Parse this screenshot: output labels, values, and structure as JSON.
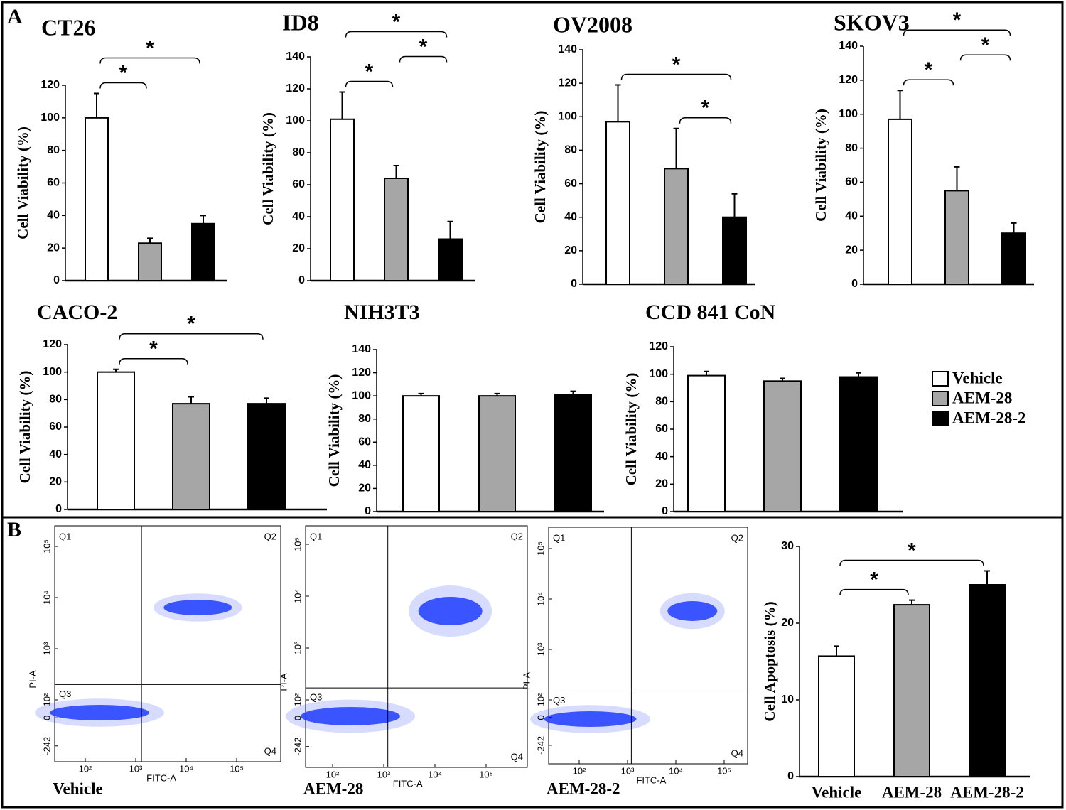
{
  "panel_labels": [
    "A",
    "B"
  ],
  "legend": [
    {
      "name": "Vehicle",
      "color": "#ffffff"
    },
    {
      "name": "AEM-28",
      "color": "#a6a6a6"
    },
    {
      "name": "AEM-28-2",
      "color": "#000000"
    }
  ],
  "chart_data": [
    {
      "type": "bar",
      "title": "CT26",
      "ylabel": "Cell Viability (%)",
      "values": [
        100,
        23,
        35
      ],
      "errors": [
        15,
        3,
        5
      ],
      "ylim": [
        0,
        120
      ],
      "yticks": [
        0,
        20,
        40,
        60,
        80,
        100,
        120
      ],
      "significance": [
        {
          "from": 0,
          "to": 1,
          "label": "*"
        },
        {
          "from": 0,
          "to": 2,
          "label": "*"
        }
      ]
    },
    {
      "type": "bar",
      "title": "ID8",
      "ylabel": "Cell Viability (%)",
      "values": [
        101,
        64,
        26
      ],
      "errors": [
        17,
        8,
        11
      ],
      "ylim": [
        0,
        140
      ],
      "yticks": [
        0,
        20,
        40,
        60,
        80,
        100,
        120,
        140
      ],
      "significance": [
        {
          "from": 0,
          "to": 1,
          "label": "*"
        },
        {
          "from": 1,
          "to": 2,
          "label": "*"
        },
        {
          "from": 0,
          "to": 2,
          "label": "*"
        }
      ]
    },
    {
      "type": "bar",
      "title": "OV2008",
      "ylabel": "Cell Viability (%)",
      "values": [
        97,
        69,
        40
      ],
      "errors": [
        22,
        24,
        14
      ],
      "ylim": [
        0,
        140
      ],
      "yticks": [
        0,
        20,
        40,
        60,
        80,
        100,
        120,
        140
      ],
      "significance": [
        {
          "from": 1,
          "to": 2,
          "label": "*"
        },
        {
          "from": 0,
          "to": 2,
          "label": "*"
        }
      ]
    },
    {
      "type": "bar",
      "title": "SKOV3",
      "ylabel": "Cell Viability (%)",
      "values": [
        97,
        55,
        30
      ],
      "errors": [
        17,
        14,
        6
      ],
      "ylim": [
        0,
        140
      ],
      "yticks": [
        0,
        20,
        40,
        60,
        80,
        100,
        120,
        140
      ],
      "significance": [
        {
          "from": 0,
          "to": 1,
          "label": "*"
        },
        {
          "from": 1,
          "to": 2,
          "label": "*"
        },
        {
          "from": 0,
          "to": 2,
          "label": "*"
        }
      ]
    },
    {
      "type": "bar",
      "title": "CACO-2",
      "ylabel": "Cell Viability (%)",
      "values": [
        100,
        77,
        77
      ],
      "errors": [
        2,
        5,
        4
      ],
      "ylim": [
        0,
        120
      ],
      "yticks": [
        0,
        20,
        40,
        60,
        80,
        100,
        120
      ],
      "significance": [
        {
          "from": 0,
          "to": 1,
          "label": "*"
        },
        {
          "from": 0,
          "to": 2,
          "label": "*"
        }
      ]
    },
    {
      "type": "bar",
      "title": "NIH3T3",
      "ylabel": "Cell Viability (%)",
      "values": [
        100,
        100,
        101
      ],
      "errors": [
        2,
        2,
        3
      ],
      "ylim": [
        0,
        140
      ],
      "yticks": [
        0,
        20,
        40,
        60,
        80,
        100,
        120,
        140
      ],
      "significance": []
    },
    {
      "type": "bar",
      "title": "CCD 841 CoN",
      "ylabel": "Cell Viability (%)",
      "values": [
        99,
        95,
        98
      ],
      "errors": [
        3,
        2,
        3
      ],
      "ylim": [
        0,
        120
      ],
      "yticks": [
        0,
        20,
        40,
        60,
        80,
        100,
        120
      ],
      "significance": []
    },
    {
      "type": "flow",
      "caption": "Vehicle",
      "xlabel": "FITC-A",
      "ylabel": "PI-A",
      "quadrants": [
        "Q1",
        "Q2",
        "Q3",
        "Q4"
      ],
      "gates": {
        "x": 1300,
        "y": 200
      },
      "xticks": [
        {
          "value": 100,
          "label": "10²"
        },
        {
          "value": 1000,
          "label": "10³"
        },
        {
          "value": 10000,
          "label": "10⁴"
        },
        {
          "value": 100000,
          "label": "10⁵"
        }
      ],
      "yticks": [
        -242,
        0,
        {
          "value": 100,
          "label": "10²"
        },
        {
          "value": 1000,
          "label": "10³"
        },
        {
          "value": 10000,
          "label": "10⁴"
        },
        {
          "value": 100000,
          "label": "10⁵"
        }
      ]
    },
    {
      "type": "flow",
      "caption": "AEM-28",
      "xlabel": "FITC-A",
      "ylabel": "PI-A",
      "quadrants": [
        "Q1",
        "Q2",
        "Q3",
        "Q4"
      ],
      "gates": {
        "x": 1200,
        "y": 170
      },
      "xticks": [
        {
          "value": 100,
          "label": "10²"
        },
        {
          "value": 1000,
          "label": "10³"
        },
        {
          "value": 10000,
          "label": "10⁴"
        },
        {
          "value": 100000,
          "label": "10⁵"
        }
      ],
      "yticks": [
        -242,
        0,
        {
          "value": 100,
          "label": "10²"
        },
        {
          "value": 1000,
          "label": "10³"
        },
        {
          "value": 10000,
          "label": "10⁴"
        },
        {
          "value": 100000,
          "label": "10⁵"
        }
      ]
    },
    {
      "type": "flow",
      "caption": "AEM-28-2",
      "xlabel": "FITC-A",
      "ylabel": "PI-A",
      "quadrants": [
        "Q1",
        "Q2",
        "Q3",
        "Q4"
      ],
      "gates": {
        "x": 1200,
        "y": 150
      },
      "xticks": [
        {
          "value": 100,
          "label": "10²"
        },
        {
          "value": 1000,
          "label": "10³"
        },
        {
          "value": 10000,
          "label": "10⁴"
        },
        {
          "value": 100000,
          "label": "10⁵"
        }
      ],
      "yticks": [
        -242,
        0,
        {
          "value": 100,
          "label": "10²"
        },
        {
          "value": 1000,
          "label": "10³"
        },
        {
          "value": 10000,
          "label": "10⁴"
        },
        {
          "value": 100000,
          "label": "10⁵"
        }
      ]
    },
    {
      "type": "bar",
      "ylabel": "Cell  Apoptosis (%)",
      "categories": [
        "Vehicle",
        "AEM-28",
        "AEM-28-2"
      ],
      "values": [
        15.7,
        22.4,
        25
      ],
      "errors": [
        1.3,
        0.6,
        1.8
      ],
      "ylim": [
        0,
        30
      ],
      "yticks": [
        0,
        10,
        20,
        30
      ],
      "significance": [
        {
          "from": 0,
          "to": 1,
          "label": "*"
        },
        {
          "from": 0,
          "to": 2,
          "label": "*"
        }
      ]
    }
  ]
}
